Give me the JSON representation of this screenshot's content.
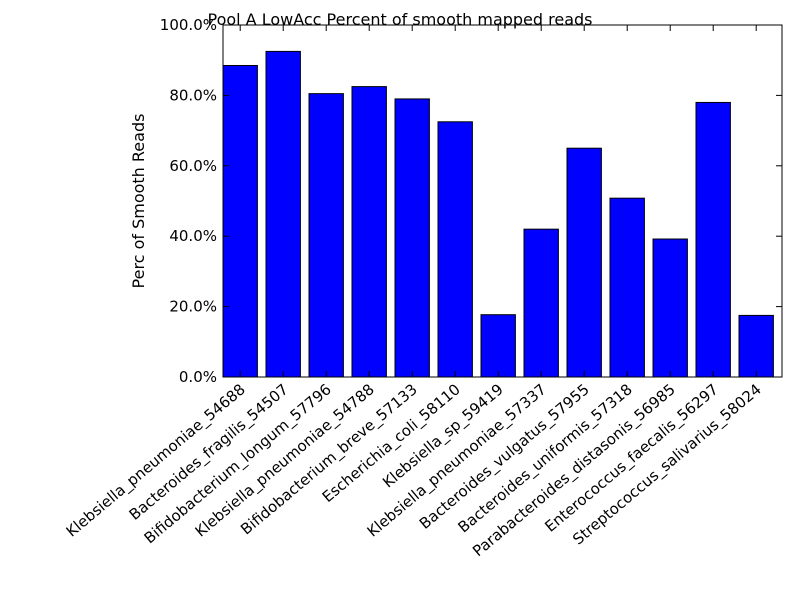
{
  "chart_data": {
    "type": "bar",
    "title": "Pool A LowAcc Percent of smooth mapped reads",
    "xlabel": "",
    "ylabel": "Perc of Smooth Reads",
    "categories": [
      "Klebsiella_pneumoniae_54688",
      "Bacteroides_fragilis_54507",
      "Bifidobacterium_longum_57796",
      "Klebsiella_pneumoniae_54788",
      "Bifidobacterium_breve_57133",
      "Escherichia_coli_58110",
      "Klebsiella_sp_59419",
      "Klebsiella_pneumoniae_57337",
      "Bacteroides_vulgatus_57955",
      "Bacteroides_uniformis_57318",
      "Parabacteroides_distasonis_56985",
      "Enterococcus_faecalis_56297",
      "Streptococcus_salivarius_58024"
    ],
    "values": [
      88.5,
      92.5,
      80.5,
      82.5,
      79.0,
      72.5,
      17.7,
      42.0,
      65.0,
      50.8,
      39.2,
      78.0,
      17.5
    ],
    "ylim": [
      0,
      100
    ],
    "yticks": [
      0,
      20,
      40,
      60,
      80,
      100
    ],
    "ytick_labels": [
      "0.0%",
      "20.0%",
      "40.0%",
      "60.0%",
      "80.0%",
      "100.0%"
    ],
    "grid": false,
    "legend": "none",
    "bar_color": "#0000ff",
    "edge_color": "#000000"
  }
}
